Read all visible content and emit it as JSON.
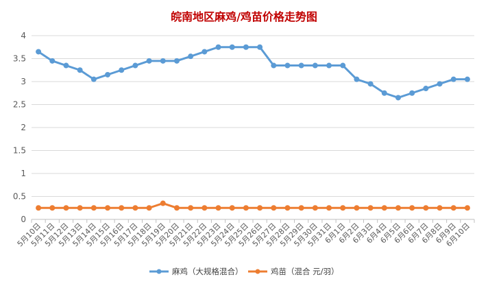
{
  "chart_data": {
    "type": "line",
    "title": "皖南地区麻鸡/鸡苗价格走势图",
    "xlabel": "",
    "ylabel": "",
    "ylim": [
      0,
      4
    ],
    "yticks": [
      "0",
      "0.5",
      "1",
      "1.5",
      "2",
      "2.5",
      "3",
      "3.5",
      "4"
    ],
    "grid": "horizontal",
    "legend_position": "bottom",
    "categories": [
      "5月10日",
      "5月11日",
      "5月12日",
      "5月13日",
      "5月14日",
      "5月15日",
      "5月16日",
      "5月17日",
      "5月18日",
      "5月19日",
      "5月20日",
      "5月21日",
      "5月22日",
      "5月23日",
      "5月24日",
      "5月25日",
      "5月26日",
      "5月27日",
      "5月28日",
      "5月29日",
      "5月30日",
      "5月31日",
      "6月1日",
      "6月2日",
      "6月3日",
      "6月4日",
      "6月5日",
      "6月6日",
      "6月7日",
      "6月8日",
      "6月9日",
      "6月10日"
    ],
    "series": [
      {
        "name": "麻鸡（大规格混合）",
        "color": "#5b9bd5",
        "values": [
          3.65,
          3.45,
          3.35,
          3.25,
          3.05,
          3.15,
          3.25,
          3.35,
          3.45,
          3.45,
          3.45,
          3.55,
          3.65,
          3.75,
          3.75,
          3.75,
          3.75,
          3.35,
          3.35,
          3.35,
          3.35,
          3.35,
          3.35,
          3.05,
          2.95,
          2.75,
          2.65,
          2.75,
          2.85,
          2.95,
          3.05,
          3.05
        ]
      },
      {
        "name": "鸡苗（混合 元/羽）",
        "color": "#ed7d31",
        "values": [
          0.25,
          0.25,
          0.25,
          0.25,
          0.25,
          0.25,
          0.25,
          0.25,
          0.25,
          0.35,
          0.25,
          0.25,
          0.25,
          0.25,
          0.25,
          0.25,
          0.25,
          0.25,
          0.25,
          0.25,
          0.25,
          0.25,
          0.25,
          0.25,
          0.25,
          0.25,
          0.25,
          0.25,
          0.25,
          0.25,
          0.25,
          0.25
        ]
      }
    ],
    "title_color": "#c00000"
  }
}
